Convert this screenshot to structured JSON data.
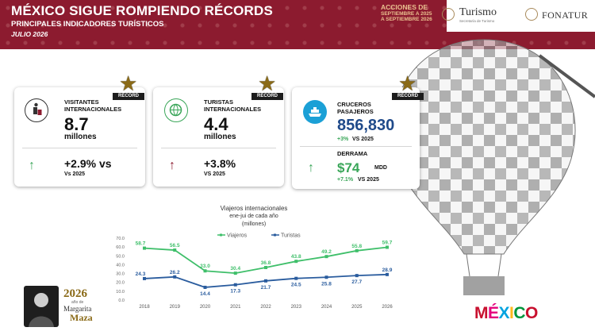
{
  "header": {
    "title": "MÉXICO SIGUE ROMPIENDO RÉCORDS",
    "subtitle": "PRINCIPALES INDICADORES TURÍSTICOS",
    "date": "JULIO 2026",
    "campaign_main": "ACCIONES DE",
    "campaign_line2": "SEPTIEMBRE A 2025",
    "campaign_line3": "A SEPTIEMBRE 2026",
    "logo_turismo": "Turismo",
    "logo_turismo_sub": "Secretaría de Turismo",
    "logo_fonatur": "FONATUR"
  },
  "cards": [
    {
      "badge": "RÉCORD",
      "label_line1": "VISITANTES",
      "label_line2": "INTERNACIONALES",
      "value": "8.7",
      "unit": "millones",
      "change": "+2.9% vs",
      "vs": "Vs 2025",
      "icon": "luggage-icon"
    },
    {
      "badge": "RÉCORD",
      "label_line1": "TURISTAS",
      "label_line2": "INTERNACIONALES",
      "value": "4.4",
      "unit": "millones",
      "change": "+3.8%",
      "vs": "VS 2025",
      "icon": "globe-plane-icon"
    },
    {
      "badge": "RÉCORD",
      "label_line1": "CRUCEROS",
      "label_line2": "PASAJEROS",
      "value": "856,830",
      "change_small": "+3%",
      "vs": "VS 2025",
      "derrama_label": "DERRAMA",
      "derrama_value": "$74",
      "derrama_unit": "MDD",
      "derrama_change": "+7.1%",
      "derrama_vs": "VS 2025",
      "icon": "cruise-ship-icon"
    }
  ],
  "colors": {
    "header_bg": "#8c1b2f",
    "green": "#3fbf6a",
    "blue": "#2a5c9e",
    "gold": "#8a6a17",
    "arrow_up_green": "#3aa659",
    "arrow_up_red": "#8c1b2f"
  },
  "chart_data": {
    "type": "line",
    "title": "Viajeros internacionales",
    "subtitle_line1": "ene-jui de cada año",
    "subtitle_line2": "(millones)",
    "x": [
      "2018",
      "2019",
      "2020",
      "2021",
      "2022",
      "2023",
      "2024",
      "2025",
      "2026"
    ],
    "series": [
      {
        "name": "Viajeros",
        "values": [
          58.7,
          56.5,
          33.0,
          30.4,
          36.8,
          43.8,
          49.2,
          55.8,
          59.7
        ],
        "color": "#3fbf6a"
      },
      {
        "name": "Turistas",
        "values": [
          24.3,
          26.2,
          14.4,
          17.3,
          21.7,
          24.5,
          25.8,
          27.7,
          28.9
        ],
        "color": "#2a5c9e"
      }
    ],
    "ylim": [
      0,
      70
    ],
    "yticks": [
      "0.0",
      "10.0",
      "20.0",
      "30.0",
      "40.0",
      "50.0",
      "60.0",
      "70.0"
    ],
    "legend": "top",
    "grid": false
  },
  "footer": {
    "year": "2026",
    "year_note": "año de",
    "name1": "Margarita",
    "name2": "Maza",
    "brand_letters": [
      "M",
      "É",
      "X",
      "I",
      "C",
      "O"
    ],
    "brand_colors": [
      "#c8102e",
      "#e4007c",
      "#00a3e0",
      "#ffb81c",
      "#00953b",
      "#c8102e"
    ]
  }
}
